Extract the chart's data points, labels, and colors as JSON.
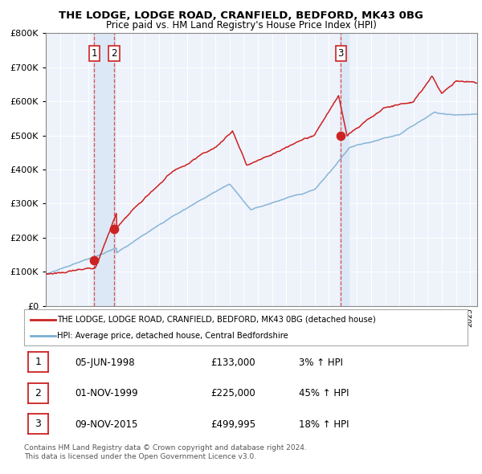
{
  "title": "THE LODGE, LODGE ROAD, CRANFIELD, BEDFORD, MK43 0BG",
  "subtitle": "Price paid vs. HM Land Registry's House Price Index (HPI)",
  "legend_line1": "THE LODGE, LODGE ROAD, CRANFIELD, BEDFORD, MK43 0BG (detached house)",
  "legend_line2": "HPI: Average price, detached house, Central Bedfordshire",
  "transactions": [
    {
      "num": 1,
      "date": "1998-06-05",
      "label": "05-JUN-1998",
      "price": 133000,
      "price_str": "£133,000",
      "pct": "3% ↑ HPI",
      "x": 1998.43
    },
    {
      "num": 2,
      "date": "1999-11-01",
      "label": "01-NOV-1999",
      "price": 225000,
      "price_str": "£225,000",
      "pct": "45% ↑ HPI",
      "x": 1999.83
    },
    {
      "num": 3,
      "date": "2015-11-09",
      "label": "09-NOV-2015",
      "price": 499995,
      "price_str": "£499,995",
      "pct": "18% ↑ HPI",
      "x": 2015.86
    }
  ],
  "vline_color": "#dd3333",
  "span_color": "#dce8f5",
  "red_line_color": "#cc2222",
  "blue_line_color": "#7bafd4",
  "dot_color": "#cc2222",
  "chart_bg": "#eef2fa",
  "ylim": [
    0,
    800000
  ],
  "yticks": [
    0,
    100000,
    200000,
    300000,
    400000,
    500000,
    600000,
    700000,
    800000
  ],
  "xlim_left": 1995.0,
  "xlim_right": 2025.5,
  "footer1": "Contains HM Land Registry data © Crown copyright and database right 2024.",
  "footer2": "This data is licensed under the Open Government Licence v3.0."
}
